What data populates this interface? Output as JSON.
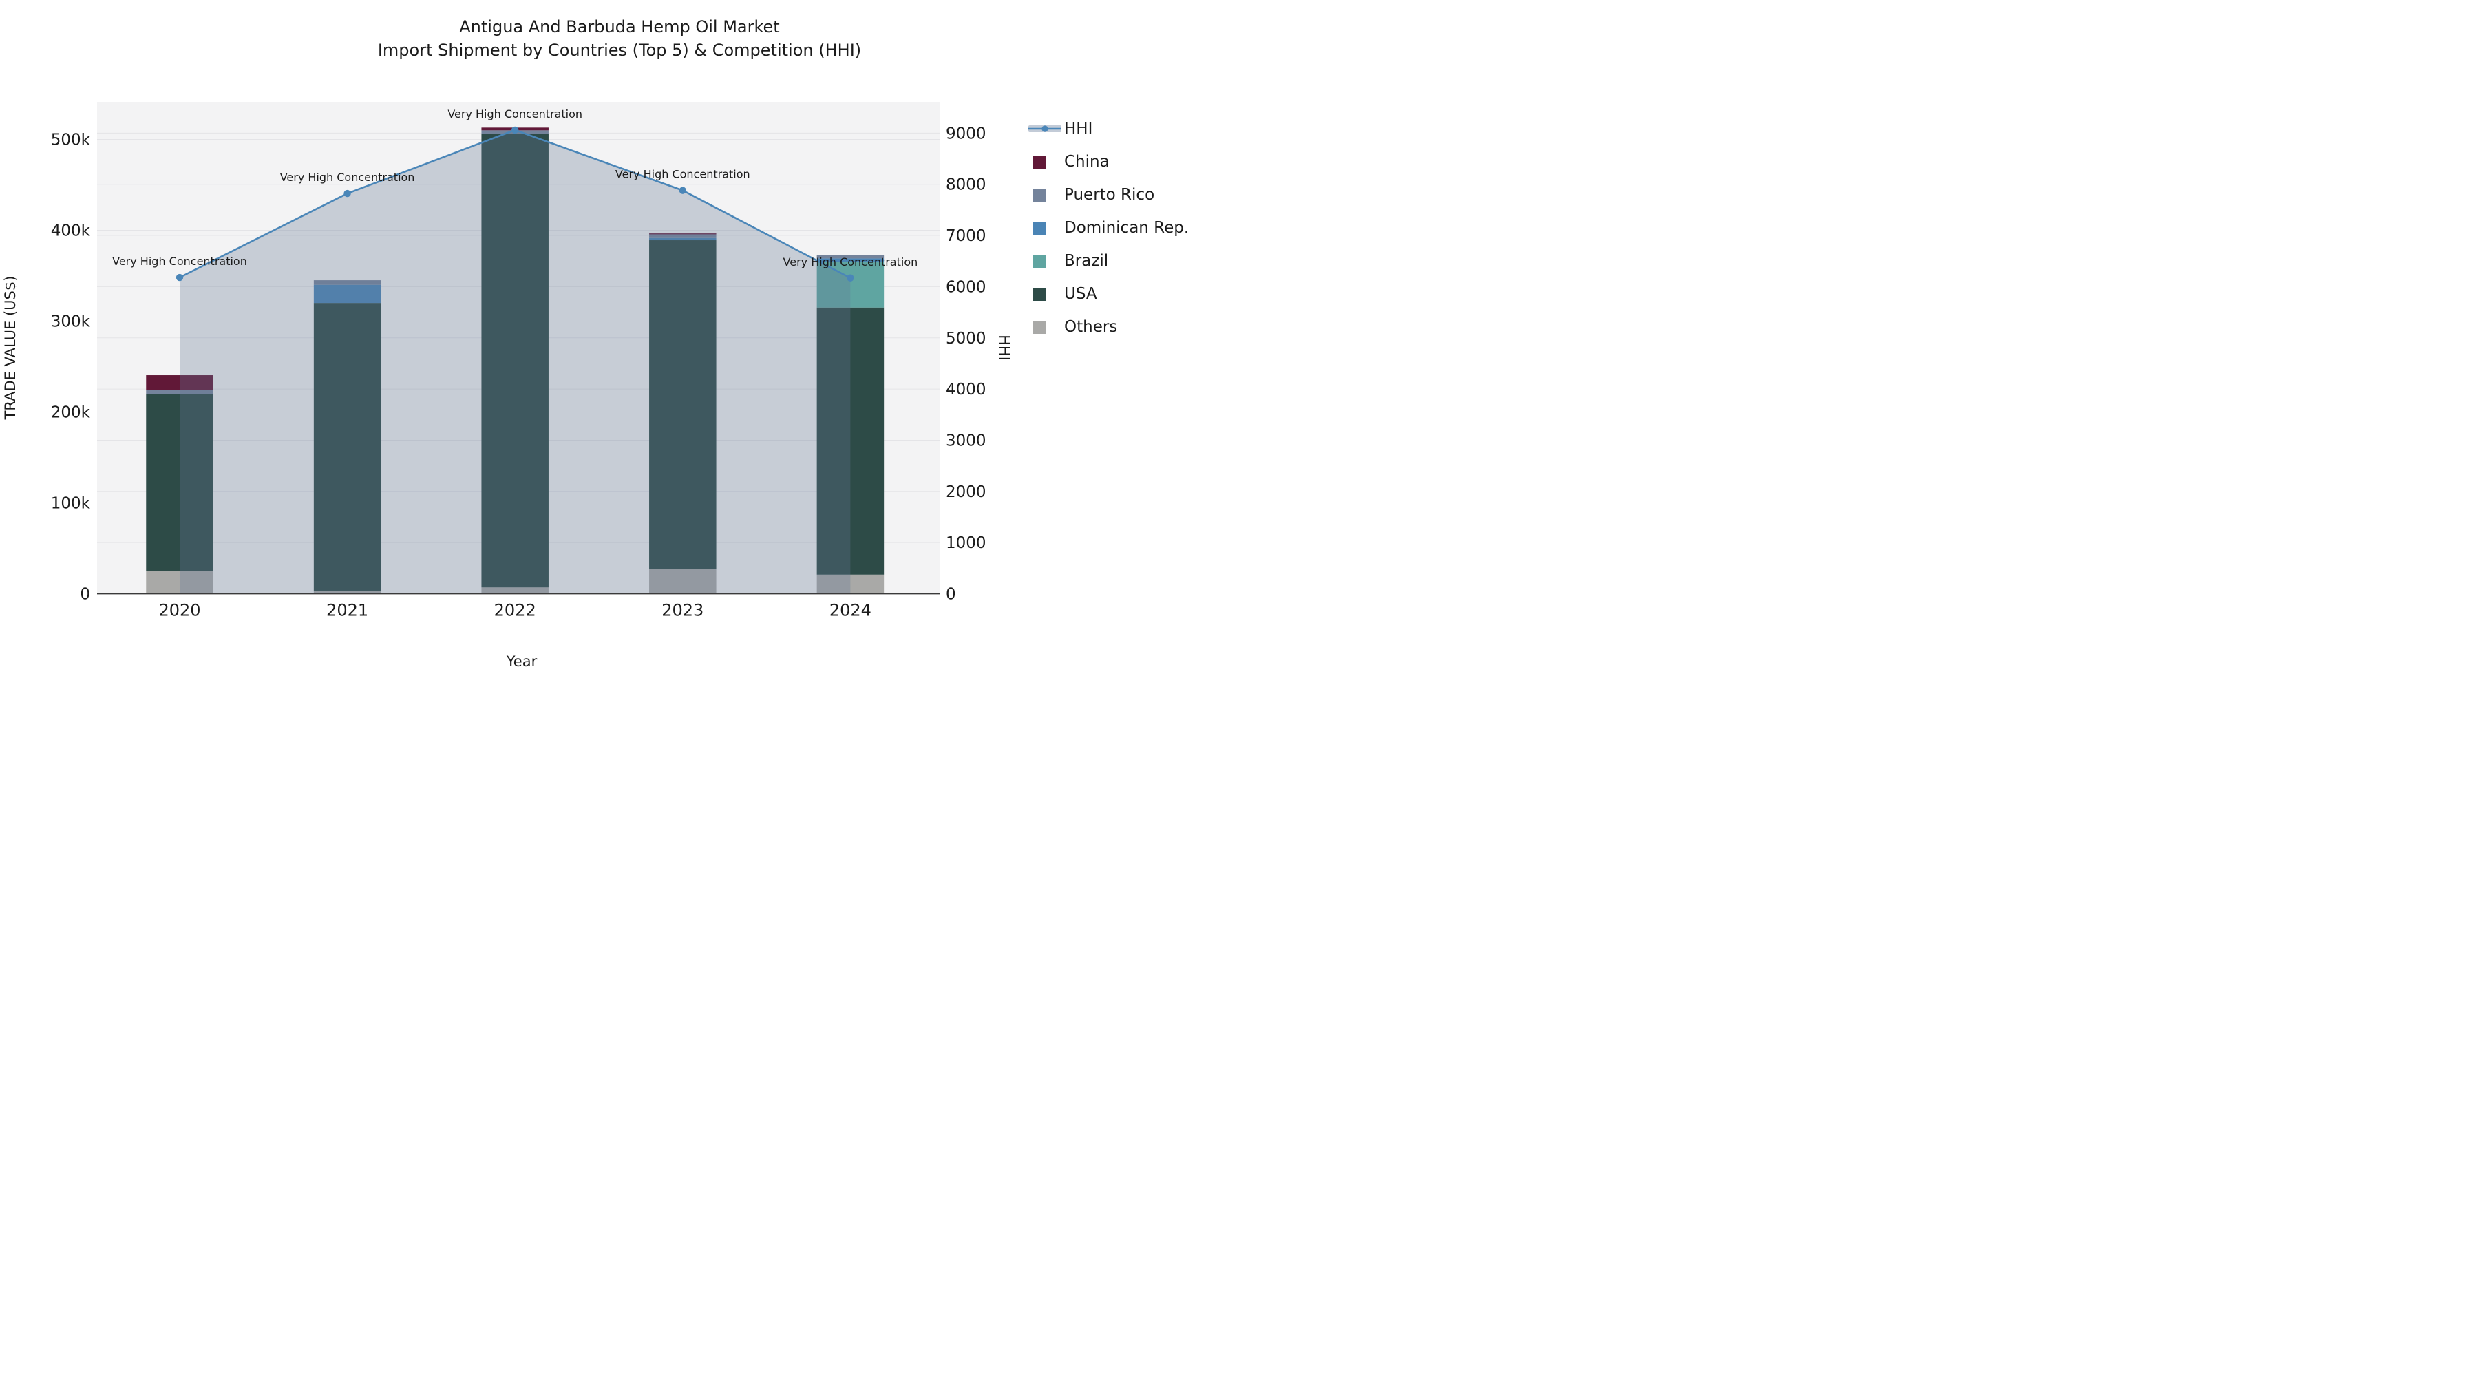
{
  "title": {
    "line1": "Antigua And Barbuda Hemp Oil Market",
    "line2": "Import Shipment by Countries (Top 5) & Competition (HHI)"
  },
  "axes": {
    "x": {
      "label": "Year",
      "ticks": [
        "2020",
        "2021",
        "2022",
        "2023",
        "2024"
      ]
    },
    "y_left": {
      "label": "TRADE VALUE (US$)",
      "ticks": [
        "0",
        "100k",
        "200k",
        "300k",
        "400k",
        "500k"
      ],
      "tick_values": [
        0,
        100000,
        200000,
        300000,
        400000,
        500000
      ]
    },
    "y_right": {
      "label": "HHI",
      "ticks": [
        "0",
        "1000",
        "2000",
        "3000",
        "4000",
        "5000",
        "6000",
        "7000",
        "8000",
        "9000"
      ],
      "tick_values": [
        0,
        1000,
        2000,
        3000,
        4000,
        5000,
        6000,
        7000,
        8000,
        9000
      ]
    }
  },
  "annotations": {
    "text": "Very High Concentration"
  },
  "legend": {
    "items": [
      "HHI",
      "China",
      "Puerto Rico",
      "Dominican Rep.",
      "Brazil",
      "USA",
      "Others"
    ]
  },
  "colors": {
    "hhi_line": "#4a86b8",
    "hhi_area": "rgba(100,120,150,0.31)",
    "hhi_legend_band": "#c3cbd7",
    "china": "#611837",
    "puerto_rico": "#74839b",
    "dominican_rep": "#4a84b5",
    "brazil": "#5fa5a1",
    "usa": "#2d4b47",
    "others": "#a9a9a7",
    "plot_bg": "#f3f3f4",
    "gridline": "#e4e4e7",
    "axis_spine": "#3a3a3a",
    "text": "#1b1b1b"
  },
  "chart_data": {
    "type": "bar",
    "subtype": "stacked-bars-with-dual-axis-line",
    "categories": [
      "2020",
      "2021",
      "2022",
      "2023",
      "2024"
    ],
    "bar_unit": "US$ trade value",
    "series": [
      {
        "name": "Others",
        "color_key": "others",
        "values": [
          25000,
          3000,
          7000,
          27000,
          21000
        ]
      },
      {
        "name": "USA",
        "color_key": "usa",
        "values": [
          195000,
          317000,
          499000,
          362000,
          294000
        ]
      },
      {
        "name": "Brazil",
        "color_key": "brazil",
        "values": [
          0,
          0,
          0,
          0,
          50000
        ]
      },
      {
        "name": "Dominican Rep.",
        "color_key": "dominican_rep",
        "values": [
          0,
          20000,
          0,
          2500,
          4000
        ]
      },
      {
        "name": "Puerto Rico",
        "color_key": "puerto_rico",
        "values": [
          4500,
          5000,
          4000,
          4000,
          4000
        ]
      },
      {
        "name": "China",
        "color_key": "china",
        "values": [
          16000,
          0,
          3000,
          1000,
          0
        ]
      }
    ],
    "bar_totals": [
      240500,
      345000,
      513000,
      396500,
      373000
    ],
    "line_series": {
      "name": "HHI",
      "axis": "right",
      "values": [
        6180,
        7820,
        9060,
        7880,
        6170
      ],
      "area_fill": true
    },
    "title": "Antigua And Barbuda Hemp Oil Market — Import Shipment by Countries (Top 5) & Competition (HHI)",
    "xlabel": "Year",
    "ylabel_left": "TRADE VALUE (US$)",
    "ylabel_right": "HHI",
    "ylim_left": [
      0,
      541000
    ],
    "ylim_right": [
      0,
      9612
    ],
    "grid": true,
    "legend_position": "right"
  }
}
